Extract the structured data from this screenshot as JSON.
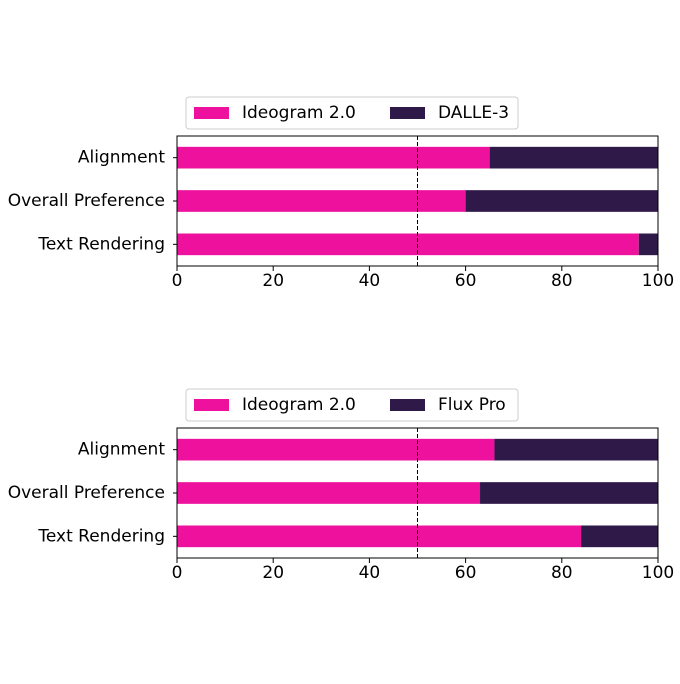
{
  "chart_data": [
    {
      "type": "bar",
      "orientation": "horizontal",
      "stacked": true,
      "categories": [
        "Alignment",
        "Overall Preference",
        "Text Rendering"
      ],
      "series": [
        {
          "name": "Ideogram 2.0",
          "values": [
            65,
            60,
            96
          ],
          "color": "#ee119e"
        },
        {
          "name": "DALLE-3",
          "values": [
            35,
            40,
            4
          ],
          "color": "#2e1949"
        }
      ],
      "x_ticks": [
        "0",
        "20",
        "40",
        "60",
        "80",
        "100"
      ],
      "xlim": [
        0,
        100
      ],
      "reference_line": 50,
      "legend": "top",
      "grid": false
    },
    {
      "type": "bar",
      "orientation": "horizontal",
      "stacked": true,
      "categories": [
        "Alignment",
        "Overall Preference",
        "Text Rendering"
      ],
      "series": [
        {
          "name": "Ideogram 2.0",
          "values": [
            66,
            63,
            84
          ],
          "color": "#ee119e"
        },
        {
          "name": "Flux Pro",
          "values": [
            34,
            37,
            16
          ],
          "color": "#2e1949"
        }
      ],
      "x_ticks": [
        "0",
        "20",
        "40",
        "60",
        "80",
        "100"
      ],
      "xlim": [
        0,
        100
      ],
      "reference_line": 50,
      "legend": "top",
      "grid": false
    }
  ]
}
